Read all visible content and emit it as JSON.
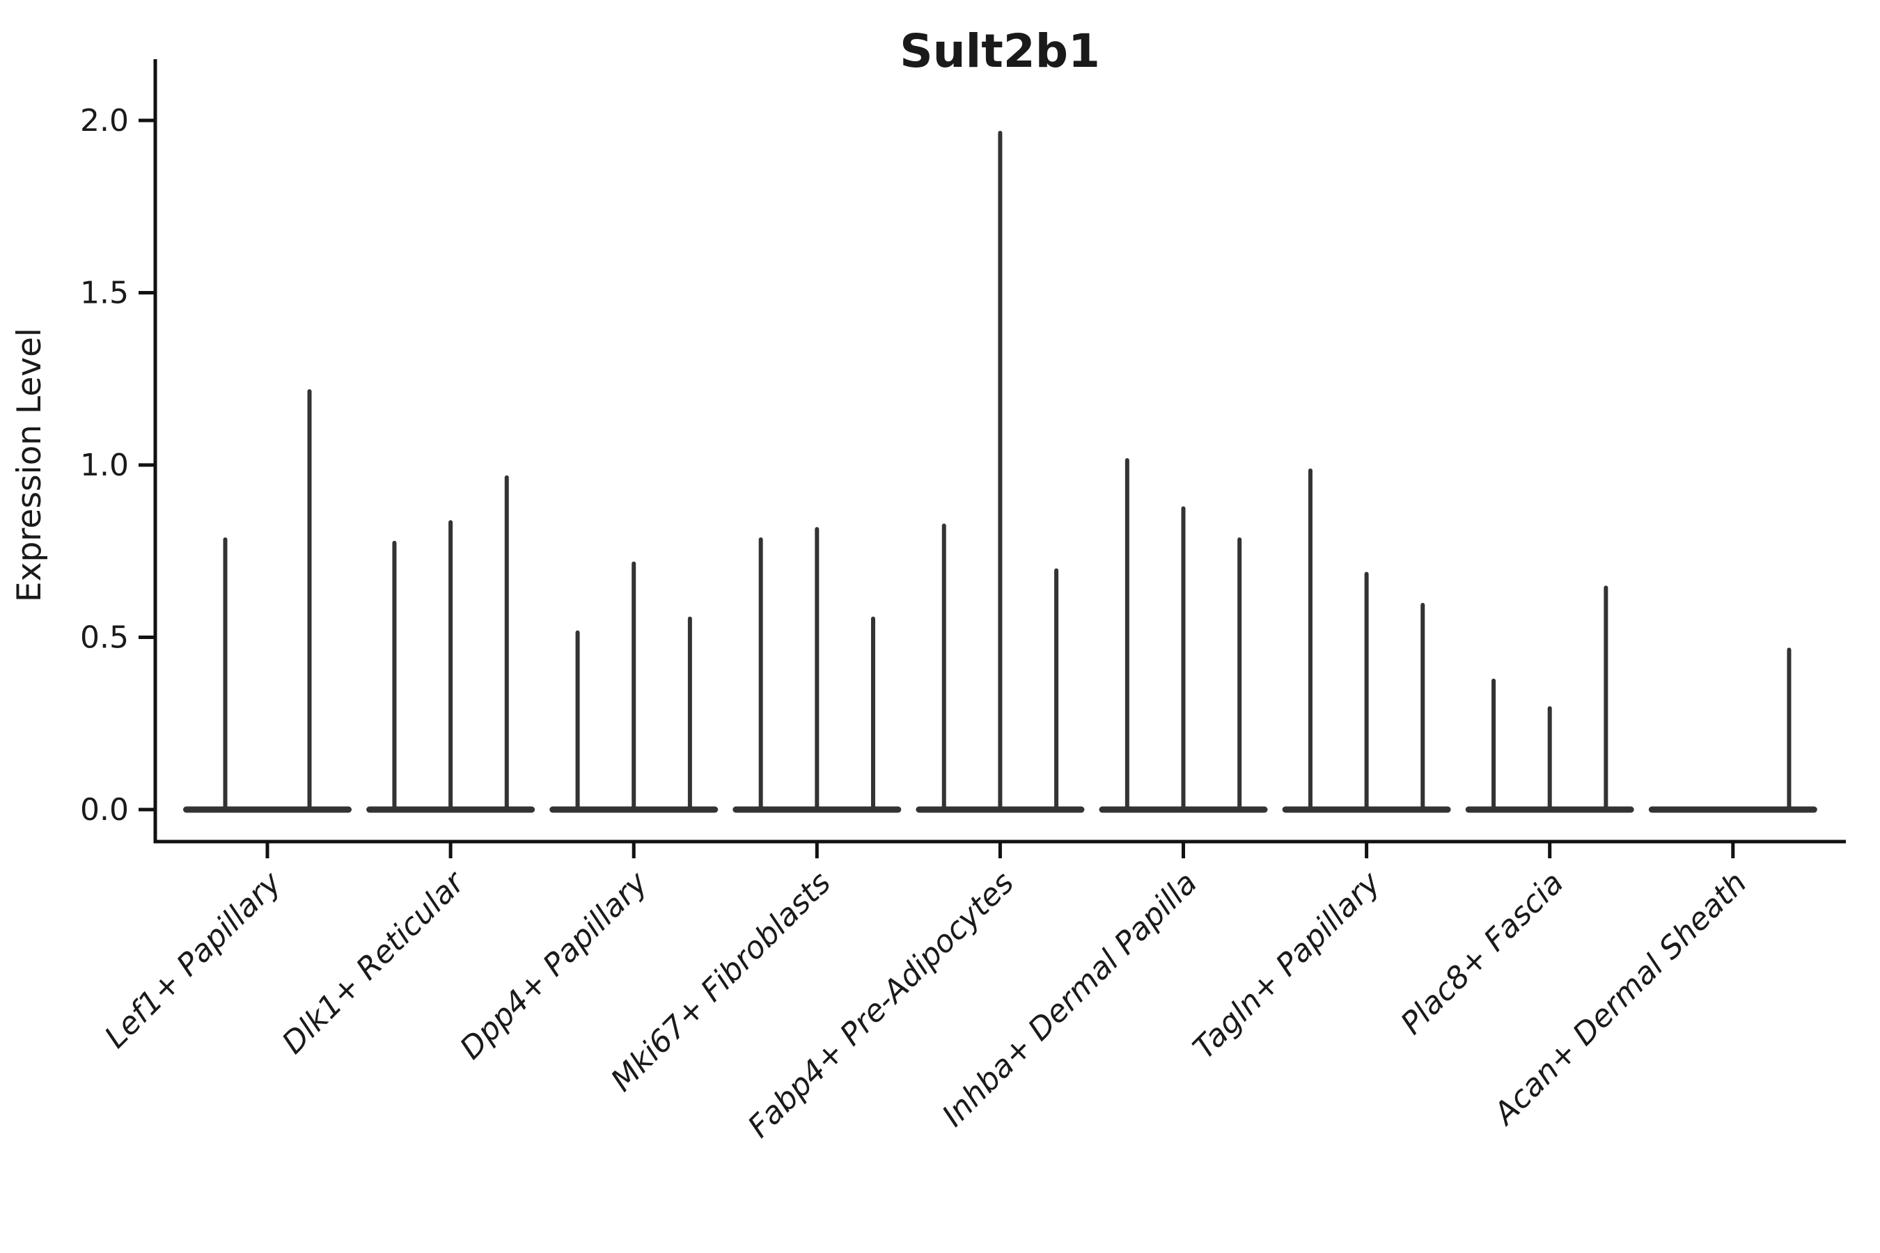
{
  "page": {
    "background": "#ffffff"
  },
  "chart_data": {
    "type": "violin",
    "title": "Sult2b1",
    "ylabel": "Expression Level",
    "xlabel": "",
    "grid": false,
    "legend": false,
    "ink_color": "#333333",
    "axis_color": "#111111",
    "text_color": "#1a1a1a",
    "ylim": [
      -0.09,
      2.18
    ],
    "yticks": [
      {
        "label": "0.0",
        "value": 0.0
      },
      {
        "label": "0.5",
        "value": 0.5
      },
      {
        "label": "1.0",
        "value": 1.0
      },
      {
        "label": "1.5",
        "value": 1.5
      },
      {
        "label": "2.0",
        "value": 2.0
      }
    ],
    "categories": [
      "Lef1+ Papillary",
      "Dlk1+ Reticular",
      "Dpp4+ Papillary",
      "Mki67+ Fibroblasts",
      "Fabp4+ Pre-Adipocytes",
      "Inhba+ Dermal Papilla",
      "Tagln+ Papillary",
      "Plac8+ Fascia",
      "Acan+ Dermal Sheath"
    ],
    "groups": [
      {
        "category": "Lef1+ Papillary",
        "violins": [
          {
            "frac": 0.25,
            "max": 0.79
          },
          {
            "frac": 0.75,
            "max": 1.22
          }
        ]
      },
      {
        "category": "Dlk1+ Reticular",
        "violins": [
          {
            "frac": 0.1667,
            "max": 0.78
          },
          {
            "frac": 0.5,
            "max": 0.84
          },
          {
            "frac": 0.8333,
            "max": 0.97
          }
        ]
      },
      {
        "category": "Dpp4+ Papillary",
        "violins": [
          {
            "frac": 0.1667,
            "max": 0.52
          },
          {
            "frac": 0.5,
            "max": 0.72
          },
          {
            "frac": 0.8333,
            "max": 0.56
          }
        ]
      },
      {
        "category": "Mki67+ Fibroblasts",
        "violins": [
          {
            "frac": 0.1667,
            "max": 0.79
          },
          {
            "frac": 0.5,
            "max": 0.82
          },
          {
            "frac": 0.8333,
            "max": 0.56
          }
        ]
      },
      {
        "category": "Fabp4+ Pre-Adipocytes",
        "violins": [
          {
            "frac": 0.1667,
            "max": 0.83
          },
          {
            "frac": 0.5,
            "max": 1.97
          },
          {
            "frac": 0.8333,
            "max": 0.7
          }
        ]
      },
      {
        "category": "Inhba+ Dermal Papilla",
        "violins": [
          {
            "frac": 0.1667,
            "max": 1.02
          },
          {
            "frac": 0.5,
            "max": 0.88
          },
          {
            "frac": 0.8333,
            "max": 0.79
          }
        ]
      },
      {
        "category": "Tagln+ Papillary",
        "violins": [
          {
            "frac": 0.1667,
            "max": 0.99
          },
          {
            "frac": 0.5,
            "max": 0.69
          },
          {
            "frac": 0.8333,
            "max": 0.6
          }
        ]
      },
      {
        "category": "Plac8+ Fascia",
        "violins": [
          {
            "frac": 0.1667,
            "max": 0.38
          },
          {
            "frac": 0.5,
            "max": 0.3
          },
          {
            "frac": 0.8333,
            "max": 0.65
          }
        ]
      },
      {
        "category": "Acan+ Dermal Sheath",
        "violins": [
          {
            "frac": 0.1667,
            "max": 0.0
          },
          {
            "frac": 0.5,
            "max": 0.0
          },
          {
            "frac": 0.8333,
            "max": 0.47
          }
        ]
      }
    ]
  }
}
